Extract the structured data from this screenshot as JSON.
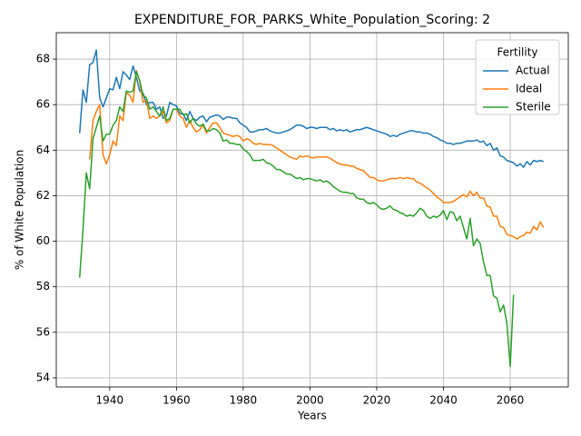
{
  "chart_data": {
    "type": "line",
    "title": "EXPENDITURE_FOR_PARKS_White_Population_Scoring: 2",
    "x_label": "Years",
    "y_label": "% of White Population",
    "legend_title": "Fertility",
    "legend_position": "upper right",
    "grid": true,
    "xlim": [
      1924,
      2077.4
    ],
    "ylim": [
      53.6,
      69.16
    ],
    "xticks": [
      1940,
      1960,
      1980,
      2000,
      2020,
      2040,
      2060
    ],
    "yticks": [
      54,
      56,
      58,
      60,
      62,
      64,
      66,
      68
    ],
    "x": [
      1931,
      1932,
      1933,
      1934,
      1935,
      1936,
      1937,
      1938,
      1939,
      1940,
      1941,
      1942,
      1943,
      1944,
      1945,
      1946,
      1947,
      1948,
      1949,
      1950,
      1951,
      1952,
      1953,
      1954,
      1955,
      1956,
      1957,
      1958,
      1959,
      1960,
      1961,
      1962,
      1963,
      1964,
      1965,
      1966,
      1967,
      1968,
      1969,
      1970,
      1971,
      1972,
      1973,
      1974,
      1975,
      1976,
      1977,
      1978,
      1979,
      1980,
      1981,
      1982,
      1983,
      1984,
      1985,
      1986,
      1987,
      1988,
      1989,
      1990,
      1991,
      1992,
      1993,
      1994,
      1995,
      1996,
      1997,
      1998,
      1999,
      2000,
      2001,
      2002,
      2003,
      2004,
      2005,
      2006,
      2007,
      2008,
      2009,
      2010,
      2011,
      2012,
      2013,
      2014,
      2015,
      2016,
      2017,
      2018,
      2019,
      2020,
      2021,
      2022,
      2023,
      2024,
      2025,
      2026,
      2027,
      2028,
      2029,
      2030,
      2031,
      2032,
      2033,
      2034,
      2035,
      2036,
      2037,
      2038,
      2039,
      2040,
      2041,
      2042,
      2043,
      2044,
      2045,
      2046,
      2047,
      2048,
      2049,
      2050,
      2051,
      2052,
      2053,
      2054,
      2055,
      2056,
      2057,
      2058,
      2059,
      2060,
      2061,
      2062,
      2063,
      2064,
      2065,
      2066,
      2067,
      2068,
      2069,
      2070
    ],
    "series": [
      {
        "name": "Actual",
        "color": "#1f77b4",
        "values": [
          64.75,
          66.65,
          66.1,
          67.75,
          67.85,
          68.4,
          66.3,
          65.9,
          66.3,
          66.7,
          66.65,
          67.2,
          66.7,
          67.45,
          67.3,
          67.1,
          67.7,
          67.2,
          66.6,
          66.5,
          66.0,
          66.1,
          66.1,
          65.8,
          65.9,
          65.4,
          65.5,
          66.1,
          66.0,
          65.95,
          65.6,
          65.6,
          65.3,
          65.7,
          65.4,
          65.3,
          65.45,
          65.5,
          65.25,
          65.45,
          65.5,
          65.55,
          65.5,
          65.35,
          65.45,
          65.45,
          65.4,
          65.4,
          65.2,
          65.1,
          65.0,
          64.8,
          64.8,
          64.85,
          64.9,
          64.9,
          64.95,
          64.85,
          64.8,
          64.75,
          64.75,
          64.8,
          64.85,
          64.9,
          65.0,
          65.1,
          65.1,
          65.05,
          64.95,
          65.0,
          65.0,
          64.95,
          65.0,
          65.0,
          65.0,
          64.9,
          64.95,
          64.85,
          64.9,
          64.85,
          64.9,
          64.8,
          64.85,
          64.9,
          64.9,
          64.95,
          65.0,
          64.95,
          64.9,
          64.85,
          64.8,
          64.75,
          64.7,
          64.6,
          64.65,
          64.6,
          64.7,
          64.75,
          64.8,
          64.85,
          64.85,
          64.8,
          64.8,
          64.75,
          64.75,
          64.7,
          64.6,
          64.55,
          64.45,
          64.4,
          64.3,
          64.3,
          64.25,
          64.3,
          64.3,
          64.35,
          64.4,
          64.4,
          64.4,
          64.45,
          64.35,
          64.4,
          64.2,
          64.3,
          64.0,
          64.1,
          63.75,
          63.7,
          63.55,
          63.5,
          63.45,
          63.3,
          63.4,
          63.25,
          63.5,
          63.35,
          63.55,
          63.5,
          63.55,
          63.5
        ]
      },
      {
        "name": "Ideal",
        "color": "#ff7f0e",
        "values": [
          null,
          null,
          null,
          63.6,
          65.3,
          65.7,
          66.0,
          63.8,
          63.4,
          63.8,
          64.4,
          64.2,
          65.5,
          65.3,
          66.55,
          66.4,
          66.1,
          67.5,
          67.0,
          66.1,
          66.2,
          65.4,
          65.5,
          65.4,
          65.5,
          65.7,
          65.2,
          65.3,
          65.8,
          65.8,
          65.5,
          65.4,
          65.0,
          65.3,
          65.0,
          64.8,
          64.9,
          65.1,
          64.75,
          65.0,
          65.2,
          65.2,
          65.0,
          64.75,
          64.7,
          64.65,
          64.6,
          64.65,
          64.6,
          64.4,
          64.5,
          64.45,
          64.3,
          64.25,
          64.3,
          64.25,
          64.25,
          64.25,
          64.2,
          64.1,
          64.0,
          63.9,
          63.8,
          63.7,
          63.65,
          63.6,
          63.75,
          63.7,
          63.75,
          63.7,
          63.65,
          63.7,
          63.7,
          63.7,
          63.7,
          63.65,
          63.55,
          63.45,
          63.4,
          63.35,
          63.35,
          63.3,
          63.3,
          63.2,
          63.15,
          63.1,
          62.95,
          62.8,
          62.8,
          62.7,
          62.65,
          62.65,
          62.7,
          62.75,
          62.75,
          62.75,
          62.8,
          62.75,
          62.8,
          62.75,
          62.75,
          62.6,
          62.55,
          62.45,
          62.35,
          62.25,
          62.1,
          61.95,
          61.85,
          61.7,
          61.7,
          61.7,
          61.75,
          61.85,
          61.95,
          62.05,
          61.95,
          62.2,
          62.0,
          62.15,
          61.9,
          61.9,
          61.55,
          61.5,
          61.1,
          61.1,
          60.65,
          60.6,
          60.3,
          60.25,
          60.2,
          60.1,
          60.2,
          60.25,
          60.4,
          60.35,
          60.65,
          60.5,
          60.85,
          60.6
        ]
      },
      {
        "name": "Sterile",
        "color": "#2ca02c",
        "values": [
          58.4,
          60.5,
          63.0,
          62.3,
          64.5,
          65.0,
          65.5,
          64.4,
          64.7,
          64.7,
          65.1,
          65.3,
          65.9,
          65.7,
          66.6,
          66.55,
          66.6,
          67.45,
          67.05,
          66.4,
          66.3,
          65.8,
          65.9,
          65.7,
          65.5,
          65.9,
          65.3,
          65.4,
          65.8,
          65.8,
          65.8,
          65.55,
          65.6,
          65.2,
          65.4,
          65.15,
          65.05,
          65.15,
          64.85,
          64.85,
          64.95,
          64.9,
          64.75,
          64.4,
          64.45,
          64.3,
          64.3,
          64.25,
          64.25,
          64.05,
          63.95,
          63.8,
          63.55,
          63.55,
          63.55,
          63.6,
          63.45,
          63.4,
          63.3,
          63.15,
          63.15,
          63.05,
          62.95,
          62.95,
          62.85,
          62.75,
          62.8,
          62.7,
          62.75,
          62.75,
          62.7,
          62.65,
          62.7,
          62.6,
          62.65,
          62.55,
          62.4,
          62.3,
          62.2,
          62.15,
          62.15,
          62.1,
          62.1,
          61.9,
          61.85,
          61.85,
          61.7,
          61.65,
          61.7,
          61.6,
          61.45,
          61.4,
          61.45,
          61.55,
          61.4,
          61.35,
          61.25,
          61.2,
          61.1,
          61.15,
          61.1,
          61.25,
          61.45,
          61.35,
          61.1,
          61.0,
          61.1,
          61.05,
          61.15,
          61.35,
          60.95,
          61.3,
          61.25,
          60.9,
          61.1,
          60.6,
          60.1,
          61.0,
          59.8,
          60.1,
          59.9,
          59.1,
          58.5,
          58.5,
          57.6,
          57.5,
          56.9,
          57.2,
          56.4,
          54.5,
          57.65,
          null,
          null,
          null,
          null,
          null,
          null,
          null,
          null,
          null
        ]
      }
    ]
  }
}
